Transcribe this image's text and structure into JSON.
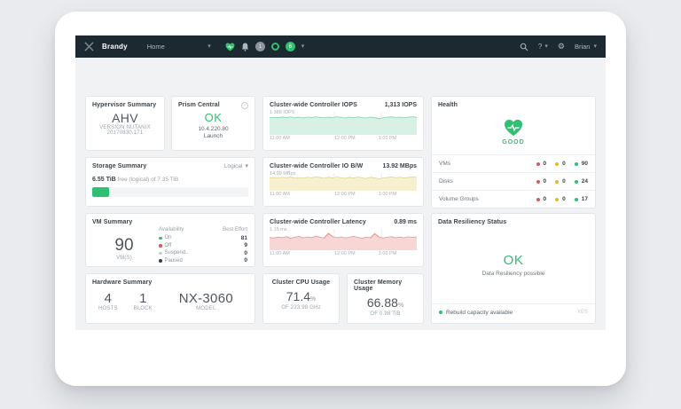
{
  "topbar": {
    "cluster_name": "Brandy",
    "nav_menu_label": "Home",
    "alerts_count": "1",
    "tasks_count": "6",
    "help_label": "?",
    "user_name": "Brian"
  },
  "icons": {
    "caret_down": "▾",
    "gear": "⚙",
    "info": "i"
  },
  "cards": {
    "hypervisor": {
      "title": "Hypervisor Summary",
      "value": "AHV",
      "line1": "VERSION NUTANIX",
      "line2": "20170830.171"
    },
    "prism_central": {
      "title": "Prism Central",
      "status": "OK",
      "ip": "10.4.220.80",
      "action": "Launch"
    },
    "iops": {
      "title": "Cluster-wide Controller IOPS",
      "value": "1,313 IOPS",
      "y_max_label": "1,388 IOPS",
      "x_ticks": [
        "11:00 AM",
        "12:00 PM",
        "1:00 PM"
      ]
    },
    "health": {
      "title": "Health",
      "status": "GOOD",
      "rows": [
        {
          "label": "VMs",
          "critical": "0",
          "warning": "0",
          "good": "90"
        },
        {
          "label": "Disks",
          "critical": "0",
          "warning": "0",
          "good": "24"
        },
        {
          "label": "Volume Groups",
          "critical": "0",
          "warning": "0",
          "good": "17"
        }
      ]
    },
    "storage": {
      "title": "Storage Summary",
      "filter": "Logical",
      "free_value": "6.55 TiB",
      "free_label": "free (logical) of",
      "total": "7.35 TiB",
      "used_pct": 11
    },
    "iobw": {
      "title": "Cluster-wide Controller IO B/W",
      "value": "13.92 MBps",
      "y_max_label": "14.99 MBps",
      "x_ticks": [
        "11:00 AM",
        "12:00 PM",
        "1:00 PM"
      ]
    },
    "vm_summary": {
      "title": "VM Summary",
      "count": "90",
      "count_label": "VM(S)",
      "col1": "Availability",
      "col2": "Best Effort",
      "rows": [
        {
          "label": "On",
          "value": "81"
        },
        {
          "label": "Off",
          "value": "9"
        },
        {
          "label": "Suspend..",
          "value": "0"
        },
        {
          "label": "Paused",
          "value": "0"
        }
      ]
    },
    "latency": {
      "title": "Cluster-wide Controller Latency",
      "value": "0.89 ms",
      "y_max_label": "1.15 ms",
      "x_ticks": [
        "11:00 AM",
        "12:00 PM",
        "1:00 PM"
      ]
    },
    "resiliency": {
      "title": "Data Resiliency Status",
      "status": "OK",
      "subtitle": "Data Resiliency possible",
      "footer_label": "Rebuild capacity available",
      "footer_value": "YES"
    },
    "hardware": {
      "title": "Hardware Summary",
      "hosts": "4",
      "hosts_label": "HOSTS",
      "blocks": "1",
      "blocks_label": "BLOCK",
      "model": "NX-3060",
      "model_label": "MODEL"
    },
    "cpu": {
      "title": "Cluster CPU Usage",
      "value": "71.4",
      "unit": "%",
      "sub": "OF 223.98 GHz"
    },
    "memory": {
      "title": "Cluster Memory Usage",
      "value": "66.88",
      "unit": "%",
      "sub": "OF 0.98 TiB"
    }
  },
  "charts": {
    "iops": {
      "type": "area",
      "max": 1388,
      "fill": "#d8f1e4",
      "stroke": "#8ed9b5",
      "values": [
        1265,
        1300,
        1270,
        1315,
        1280,
        1330,
        1260,
        1305,
        1250,
        1320,
        1285,
        1340,
        1295,
        1255,
        1315,
        1275,
        1335,
        1300,
        1250,
        1310,
        1270,
        1330,
        1280,
        1240,
        1315,
        1270,
        1190,
        1260,
        1305,
        1340,
        1285,
        1320,
        1265,
        1310,
        1345,
        1290
      ]
    },
    "iobw": {
      "type": "area",
      "max": 14.99,
      "fill": "#f6efd0",
      "stroke": "#e2d28d",
      "values": [
        13.2,
        13.8,
        13.1,
        14.0,
        13.4,
        14.3,
        13.0,
        13.7,
        12.8,
        14.1,
        13.5,
        14.4,
        13.8,
        12.9,
        14.0,
        13.3,
        14.2,
        13.6,
        12.7,
        13.9,
        13.2,
        14.3,
        13.5,
        12.6,
        14.0,
        13.3,
        12.2,
        13.1,
        13.8,
        14.4,
        13.5,
        14.1,
        13.2,
        13.8,
        14.5,
        13.9
      ]
    },
    "latency": {
      "type": "area",
      "max": 1.15,
      "fill": "#f7d6d6",
      "stroke": "#e59b9b",
      "values": [
        0.82,
        0.78,
        0.85,
        0.8,
        0.88,
        0.76,
        0.84,
        0.9,
        0.79,
        0.86,
        0.81,
        0.92,
        0.84,
        0.78,
        1.12,
        0.88,
        0.8,
        0.86,
        0.79,
        0.84,
        0.9,
        0.82,
        0.76,
        0.85,
        0.8,
        1.1,
        0.86,
        0.78,
        0.84,
        0.88,
        0.8,
        0.85,
        0.79,
        0.87,
        0.83,
        0.86
      ]
    }
  },
  "colors": {
    "accent_green": "#2fc071",
    "alert_red": "#e4555a",
    "warn_yellow": "#f3b32a",
    "topbar_bg": "#1d2930",
    "content_bg": "#f1f2f4"
  }
}
